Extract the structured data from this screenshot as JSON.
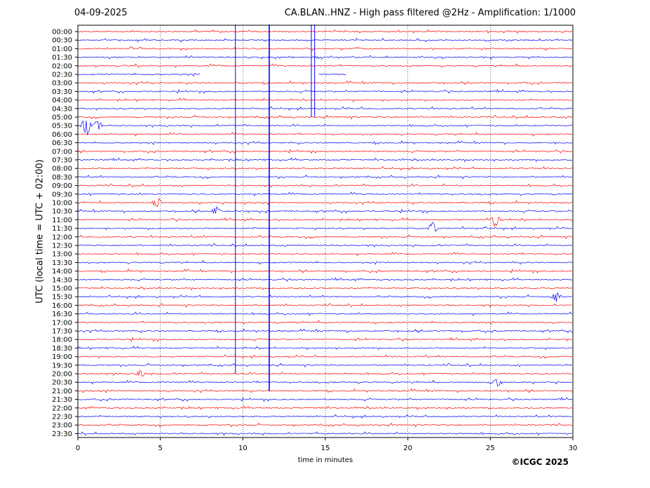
{
  "header": {
    "date": "04-09-2025",
    "title": "CA.BLAN..HNZ - High pass filtered @2Hz - Amplification: 1/1000"
  },
  "footer": {
    "copyright": "©ICGC 2025"
  },
  "chart_data": {
    "type": "line",
    "title": "CA.BLAN..HNZ - High pass filtered @2Hz - Amplification: 1/1000",
    "xlabel": "time in minutes",
    "ylabel": "UTC (local time = UTC + 02:00)",
    "xlim": [
      0,
      30
    ],
    "xticks": [
      0,
      5,
      10,
      15,
      20,
      25,
      30
    ],
    "yticks": [
      "00:00",
      "00:30",
      "01:00",
      "01:30",
      "02:00",
      "02:30",
      "03:00",
      "03:30",
      "04:00",
      "04:30",
      "05:00",
      "05:30",
      "06:00",
      "06:30",
      "07:00",
      "07:30",
      "08:00",
      "08:30",
      "09:00",
      "09:30",
      "10:00",
      "10:30",
      "11:00",
      "11:30",
      "12:00",
      "12:30",
      "13:00",
      "13:30",
      "14:00",
      "14:30",
      "15:00",
      "15:30",
      "16:00",
      "16:30",
      "17:00",
      "17:30",
      "18:00",
      "18:30",
      "19:00",
      "19:30",
      "20:00",
      "20:30",
      "21:00",
      "21:30",
      "22:00",
      "22:30",
      "23:00",
      "23:30"
    ],
    "trace_colors": [
      "#ff0000",
      "#0000ff"
    ],
    "vertical_gridlines_dotted": true,
    "grid": true,
    "vertical_events": [
      {
        "x": 9.55,
        "color": "#0000ff",
        "from_row": "00:00",
        "to_row": "20:00"
      },
      {
        "x": 11.6,
        "color": "#0000ff",
        "from_row": "00:00",
        "to_row": "21:00"
      },
      {
        "x": 14.15,
        "color": "#0000ff",
        "from_row": "00:00",
        "to_row": "05:00"
      },
      {
        "x": 14.35,
        "color": "#0000ff",
        "from_row": "00:00",
        "to_row": "05:00"
      }
    ],
    "highlighted_bursts": [
      {
        "row": "05:30",
        "x": 0.5,
        "amplitude": 0.9
      },
      {
        "row": "05:30",
        "x": 1.2,
        "amplitude": 0.5
      },
      {
        "row": "10:00",
        "x": 4.8,
        "amplitude": 0.5
      },
      {
        "row": "10:30",
        "x": 8.4,
        "amplitude": 0.35
      },
      {
        "row": "11:00",
        "x": 25.3,
        "amplitude": 0.6
      },
      {
        "row": "11:30",
        "x": 21.5,
        "amplitude": 0.5
      },
      {
        "row": "15:30",
        "x": 29.0,
        "amplitude": 0.4
      },
      {
        "row": "20:00",
        "x": 3.8,
        "amplitude": 0.3
      },
      {
        "row": "20:30",
        "x": 25.4,
        "amplitude": 0.35
      }
    ],
    "partial_rows": [
      {
        "row": "02:30",
        "segments": [
          [
            0,
            7.4
          ],
          [
            14.6,
            16.3
          ]
        ]
      }
    ]
  }
}
